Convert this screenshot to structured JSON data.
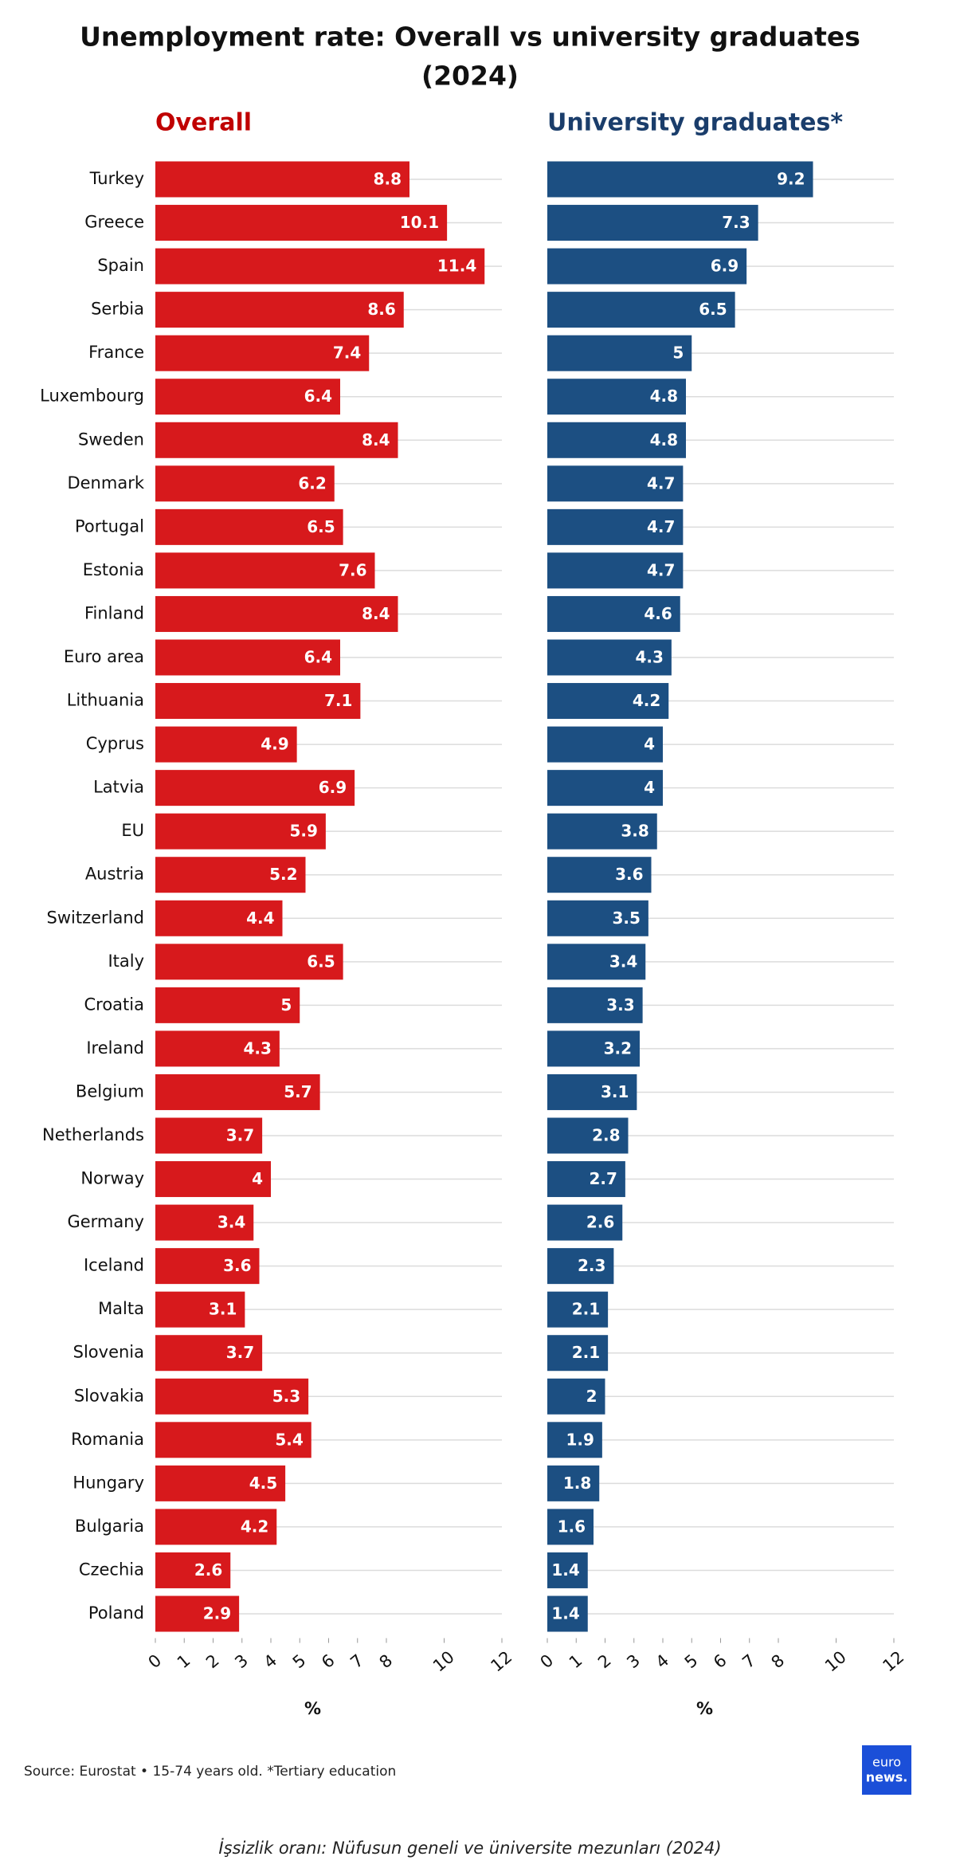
{
  "title": [
    "Unemployment rate: Overall vs university graduates",
    "(2024)"
  ],
  "chart_data": [
    {
      "type": "bar",
      "title": "Overall",
      "color": "#d7191c",
      "title_color": "#c00000",
      "xlabel": "%",
      "categories": [
        "Turkey",
        "Greece",
        "Spain",
        "Serbia",
        "France",
        "Luxembourg",
        "Sweden",
        "Denmark",
        "Portugal",
        "Estonia",
        "Finland",
        "Euro area",
        "Lithuania",
        "Cyprus",
        "Latvia",
        "EU",
        "Austria",
        "Switzerland",
        "Italy",
        "Croatia",
        "Ireland",
        "Belgium",
        "Netherlands",
        "Norway",
        "Germany",
        "Iceland",
        "Malta",
        "Slovenia",
        "Slovakia",
        "Romania",
        "Hungary",
        "Bulgaria",
        "Czechia",
        "Poland"
      ],
      "values": [
        8.8,
        10.1,
        11.4,
        8.6,
        7.4,
        6.4,
        8.4,
        6.2,
        6.5,
        7.6,
        8.4,
        6.4,
        7.1,
        4.9,
        6.9,
        5.9,
        5.2,
        4.4,
        6.5,
        5,
        4.3,
        5.7,
        3.7,
        4,
        3.4,
        3.6,
        3.1,
        3.7,
        5.3,
        5.4,
        4.5,
        4.2,
        2.6,
        2.9
      ],
      "xlim": [
        0,
        12
      ],
      "xticks": [
        0,
        1,
        2,
        3,
        4,
        5,
        6,
        7,
        8,
        10,
        12
      ]
    },
    {
      "type": "bar",
      "title": "University graduates*",
      "color": "#1c4f82",
      "title_color": "#1a3d6b",
      "xlabel": "%",
      "values": [
        9.2,
        7.3,
        6.9,
        6.5,
        5,
        4.8,
        4.8,
        4.7,
        4.7,
        4.7,
        4.6,
        4.3,
        4.2,
        4,
        4,
        3.8,
        3.6,
        3.5,
        3.4,
        3.3,
        3.2,
        3.1,
        2.8,
        2.7,
        2.6,
        2.3,
        2.1,
        2.1,
        2,
        1.9,
        1.8,
        1.6,
        1.4,
        1.4
      ],
      "xlim": [
        0,
        12
      ],
      "xticks": [
        0,
        1,
        2,
        3,
        4,
        5,
        6,
        7,
        8,
        10,
        12
      ]
    }
  ],
  "source": "Source: Eurostat • 15-74 years old. *Tertiary education",
  "logo": [
    "euro",
    "news."
  ],
  "caption": "İşsizlik oranı: Nüfusun geneli ve üniversite mezunları (2024)"
}
